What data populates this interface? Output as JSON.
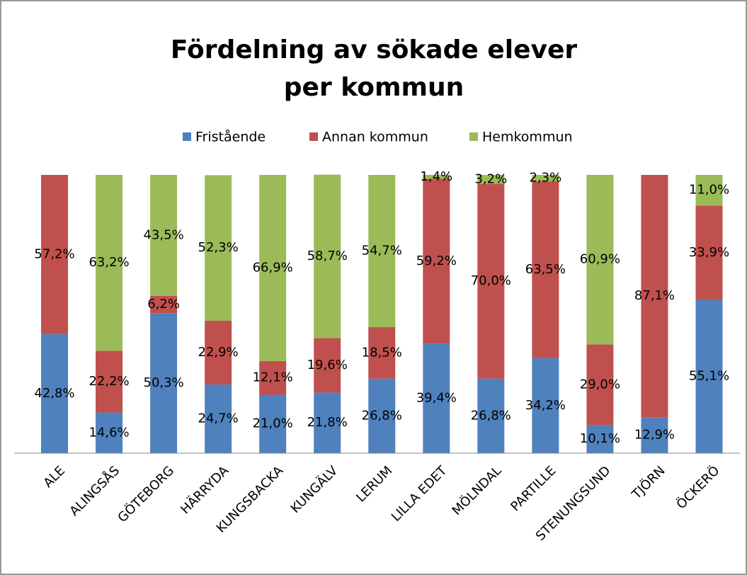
{
  "chart_data": {
    "type": "stacked_bar",
    "title": [
      "Fördelning av sökade elever",
      "per kommun"
    ],
    "categories": [
      "ALE",
      "ALINGSÅS",
      "GÖTEBORG",
      "HÄRRYDA",
      "KUNGSBACKA",
      "KUNGÄLV",
      "LERUM",
      "LILLA EDET",
      "MÖLNDAL",
      "PARTILLE",
      "STENUNGSUND",
      "TJÖRN",
      "ÖCKERÖ"
    ],
    "ylim": [
      0,
      100
    ],
    "series": [
      {
        "name": "Fristående",
        "color": "#4f81bd",
        "values": [
          42.8,
          14.6,
          50.3,
          24.7,
          21.0,
          21.8,
          26.8,
          39.4,
          26.8,
          34.2,
          10.1,
          12.9,
          55.1
        ],
        "value_labels": [
          "42,8%",
          "14,6%",
          "50,3%",
          "24,7%",
          "21,0%",
          "21,8%",
          "26,8%",
          "39,4%",
          "26,8%",
          "34,2%",
          "10,1%",
          "12,9%",
          "55,1%"
        ]
      },
      {
        "name": "Annan kommun",
        "color": "#c0504d",
        "values": [
          57.2,
          22.2,
          6.2,
          22.9,
          12.1,
          19.6,
          18.5,
          59.2,
          70.0,
          63.5,
          29.0,
          87.1,
          33.9
        ],
        "value_labels": [
          "57,2%",
          "22,2%",
          "6,2%",
          "22,9%",
          "12,1%",
          "19,6%",
          "18,5%",
          "59,2%",
          "70,0%",
          "63,5%",
          "29,0%",
          "87,1%",
          "33,9%"
        ]
      },
      {
        "name": "Hemkommun",
        "color": "#9bbb59",
        "values": [
          null,
          63.2,
          43.5,
          52.3,
          66.9,
          58.7,
          54.7,
          1.4,
          3.2,
          2.3,
          60.9,
          null,
          11.0
        ],
        "value_labels": [
          null,
          "63,2%",
          "43,5%",
          "52,3%",
          "66,9%",
          "58,7%",
          "54,7%",
          "1,4%",
          "3,2%",
          "2,3%",
          "60,9%",
          null,
          "11,0%"
        ]
      }
    ]
  }
}
